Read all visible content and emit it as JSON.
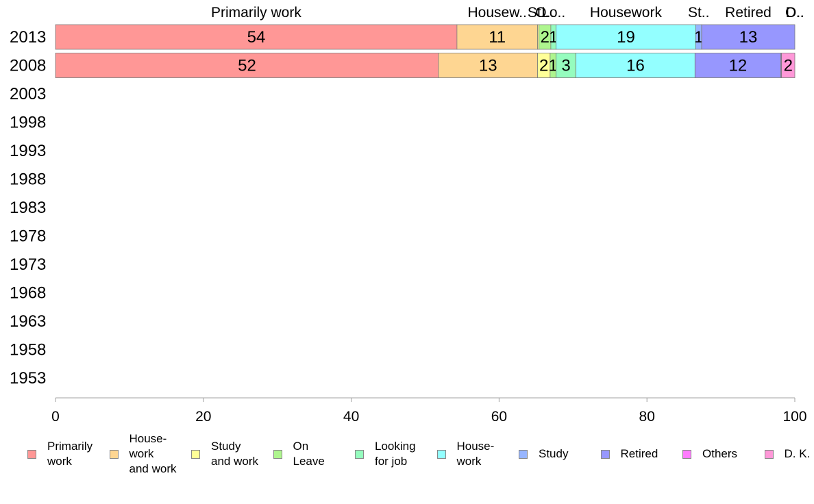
{
  "chart_data": {
    "type": "bar",
    "orientation": "horizontal",
    "stacked": true,
    "categories": [
      "2013",
      "2008",
      "2003",
      "1998",
      "1993",
      "1988",
      "1983",
      "1978",
      "1973",
      "1968",
      "1963",
      "1958",
      "1953"
    ],
    "series": [
      {
        "name": "Primarily work",
        "legend_label": "Primarily\nwork",
        "top_label": "Primarily work",
        "color": "#ff9796",
        "values": [
          54.3,
          51.8,
          null,
          null,
          null,
          null,
          null,
          null,
          null,
          null,
          null,
          null,
          null
        ],
        "labels": [
          "54",
          "52"
        ]
      },
      {
        "name": "House-work and work",
        "legend_label": "House-\nwork\nand work",
        "top_label": "Housew..",
        "color": "#fed692",
        "values": [
          10.9,
          13.4,
          null,
          null,
          null,
          null,
          null,
          null,
          null,
          null,
          null,
          null,
          null
        ],
        "labels": [
          "11",
          "13"
        ]
      },
      {
        "name": "Study and work",
        "legend_label": "Study\nand work",
        "top_label": "St..",
        "color": "#ffff98",
        "values": [
          0.2,
          1.7,
          null,
          null,
          null,
          null,
          null,
          null,
          null,
          null,
          null,
          null,
          null
        ],
        "labels": [
          "",
          "2"
        ]
      },
      {
        "name": "On Leave",
        "legend_label": "On\nLeave",
        "top_label": "O..",
        "color": "#aef58e",
        "values": [
          1.6,
          0.8,
          null,
          null,
          null,
          null,
          null,
          null,
          null,
          null,
          null,
          null,
          null
        ],
        "labels": [
          "2",
          "1"
        ]
      },
      {
        "name": "Looking for job",
        "legend_label": "Looking\nfor job",
        "top_label": "Lo..",
        "color": "#95fcbe",
        "values": [
          0.7,
          2.7,
          null,
          null,
          null,
          null,
          null,
          null,
          null,
          null,
          null,
          null,
          null
        ],
        "labels": [
          "1",
          "3"
        ]
      },
      {
        "name": "House-work",
        "legend_label": "House-\nwork",
        "top_label": "Housework",
        "color": "#93ffff",
        "values": [
          18.9,
          16.1,
          null,
          null,
          null,
          null,
          null,
          null,
          null,
          null,
          null,
          null,
          null
        ],
        "labels": [
          "19",
          "16"
        ]
      },
      {
        "name": "Study",
        "legend_label": "Study",
        "top_label": "St..",
        "color": "#97b5ff",
        "values": [
          0.8,
          0.0,
          null,
          null,
          null,
          null,
          null,
          null,
          null,
          null,
          null,
          null,
          null
        ],
        "labels": [
          "1",
          ""
        ]
      },
      {
        "name": "Retired",
        "legend_label": "Retired",
        "top_label": "Retired",
        "color": "#9797fe",
        "values": [
          12.6,
          11.6,
          null,
          null,
          null,
          null,
          null,
          null,
          null,
          null,
          null,
          null,
          null
        ],
        "labels": [
          "13",
          "12"
        ]
      },
      {
        "name": "Others",
        "legend_label": "Others",
        "top_label": "O..",
        "color": "#ff7cfe",
        "values": [
          0.0,
          0.1,
          null,
          null,
          null,
          null,
          null,
          null,
          null,
          null,
          null,
          null,
          null
        ],
        "labels": [
          "",
          ""
        ]
      },
      {
        "name": "D. K.",
        "legend_label": "D. K.",
        "top_label": "D..",
        "color": "#ff98d8",
        "values": [
          0.0,
          1.8,
          null,
          null,
          null,
          null,
          null,
          null,
          null,
          null,
          null,
          null,
          null
        ],
        "labels": [
          "",
          "2"
        ]
      }
    ],
    "xlim": [
      0,
      100
    ],
    "xticks": [
      0,
      20,
      40,
      60,
      80,
      100
    ],
    "legend_position": "bottom",
    "grid": false,
    "title": "",
    "xlabel": "",
    "ylabel": ""
  }
}
